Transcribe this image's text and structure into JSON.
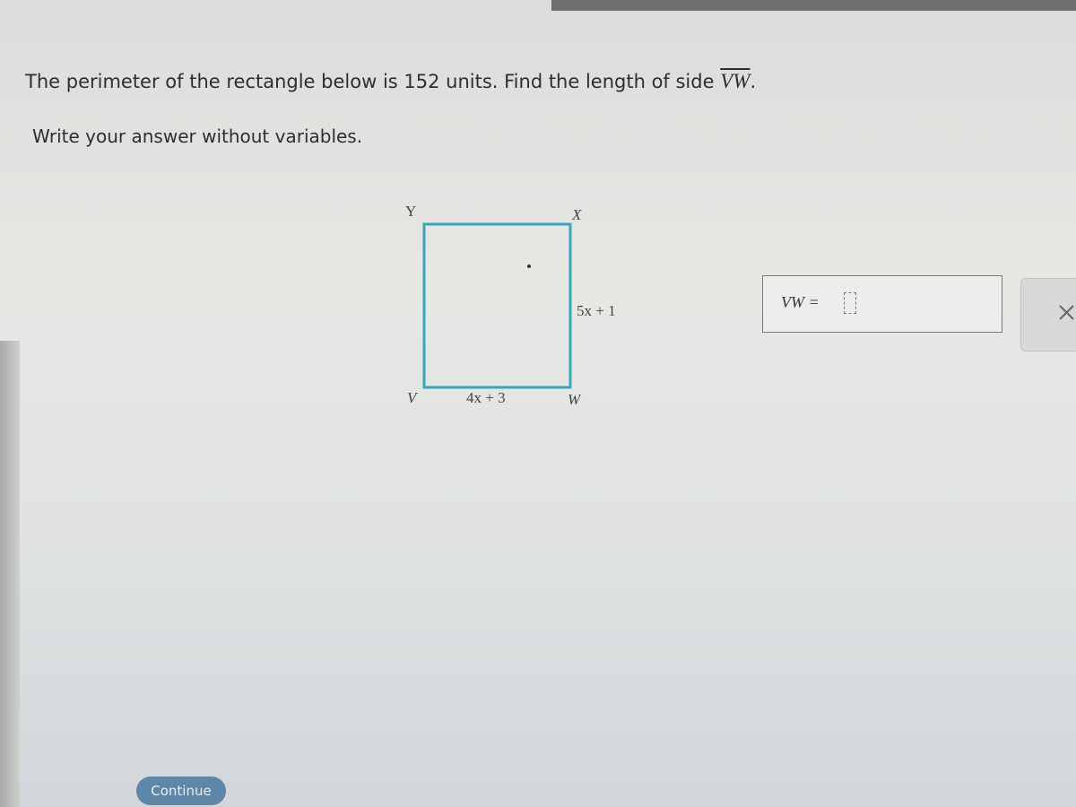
{
  "question": {
    "text": "The perimeter of the rectangle below is 152 units. Find the length of side",
    "segment": "VW",
    "end": "."
  },
  "instruction": "Write your answer without variables.",
  "diagram": {
    "vertices": {
      "top_left": "Y",
      "top_right": "X",
      "bottom_left": "V",
      "bottom_right": "W"
    },
    "side_labels": {
      "right": "5x + 1",
      "bottom": "4x + 3"
    }
  },
  "answer": {
    "label": "VW ="
  },
  "button": "Continue"
}
